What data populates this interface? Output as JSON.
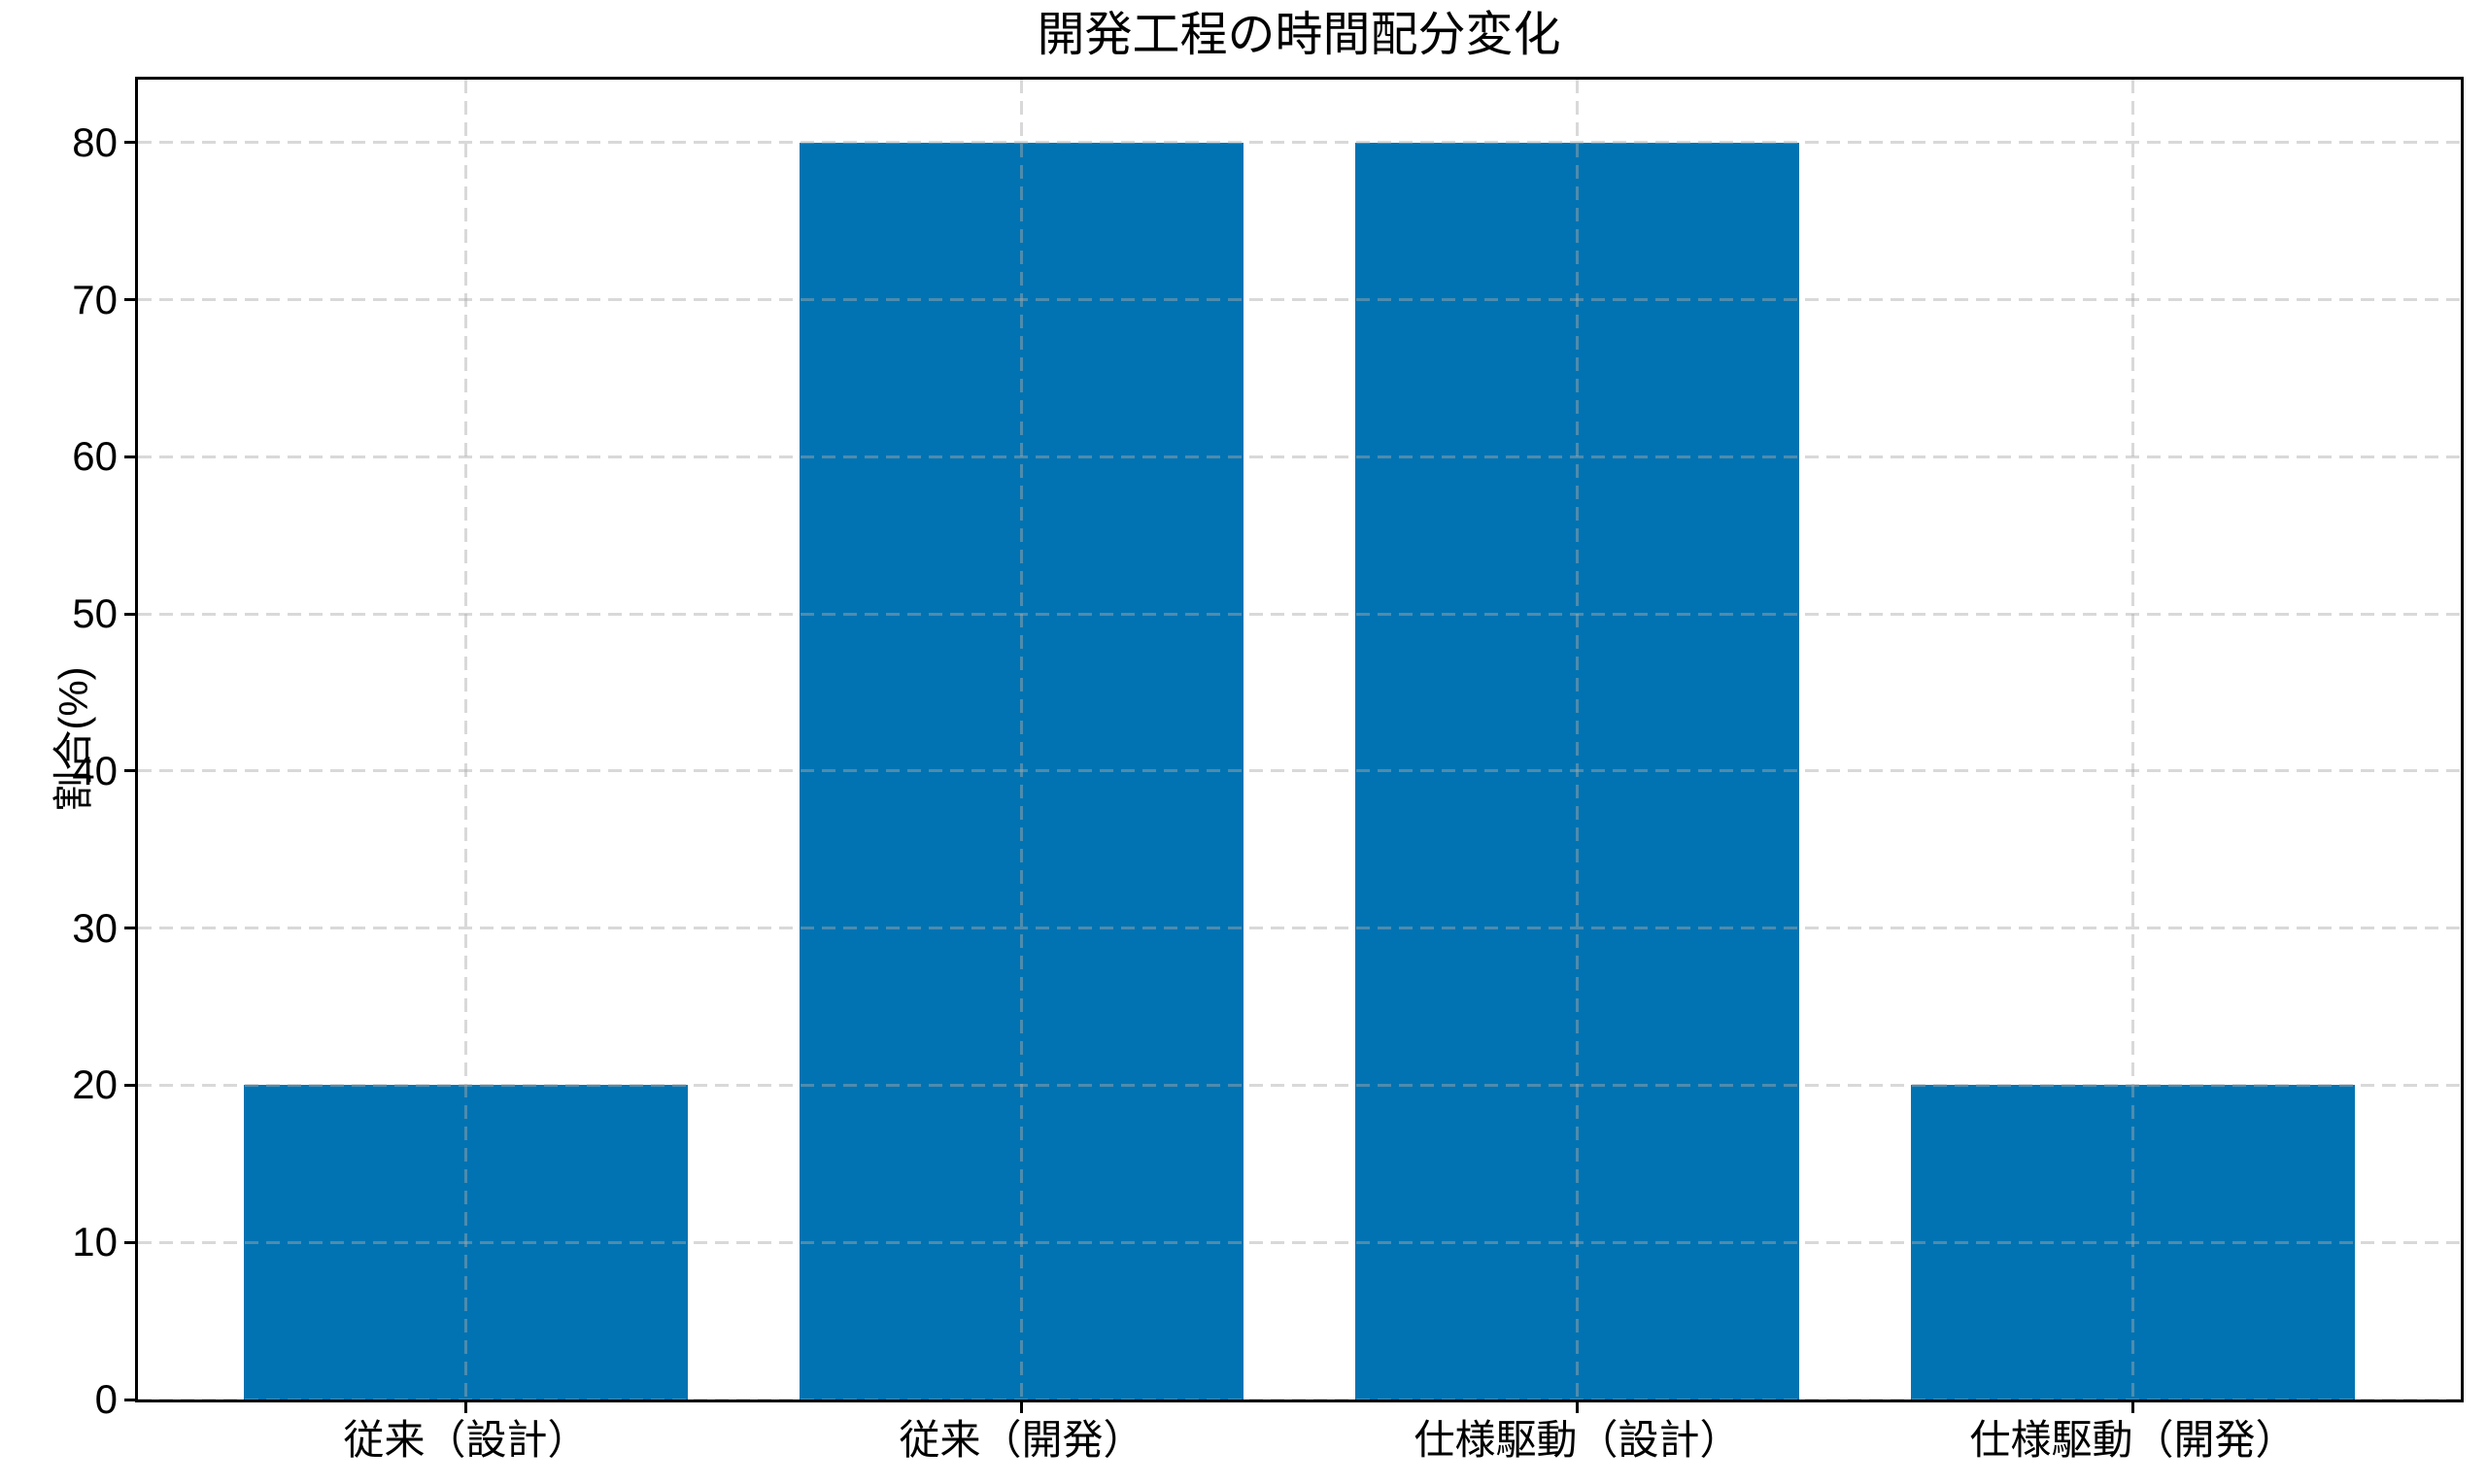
{
  "chart_data": {
    "type": "bar",
    "title": "開発工程の時間配分変化",
    "categories": [
      "従来（設計）",
      "従来（開発）",
      "仕様駆動（設計）",
      "仕様駆動（開発）"
    ],
    "values": [
      20,
      80,
      80,
      20
    ],
    "xlabel": "",
    "ylabel": "割合(%)",
    "yticks": [
      "0",
      "10",
      "20",
      "30",
      "40",
      "50",
      "60",
      "70",
      "80"
    ],
    "ytick_values": [
      0,
      10,
      20,
      30,
      40,
      50,
      60,
      70,
      80
    ],
    "ylim": [
      0,
      84
    ],
    "bar_color": "#0173b2",
    "grid": {
      "visible": true,
      "style": "dashed",
      "axis": "both",
      "color_over_white": "#d9d9d9"
    },
    "legend": null,
    "background_color": "#ffffff",
    "spine_color": "#000000"
  }
}
